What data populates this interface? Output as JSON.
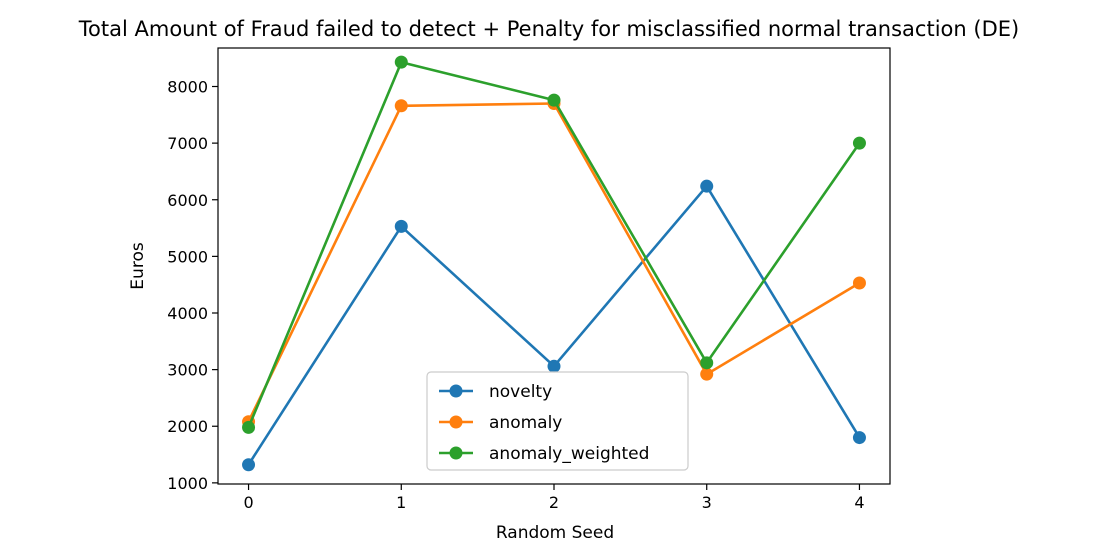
{
  "chart_data": {
    "type": "line",
    "title": "Total Amount of Fraud failed to detect + Penalty for misclassified normal transaction (DE)",
    "xlabel": "Random Seed",
    "ylabel": "Euros",
    "x": [
      0,
      1,
      2,
      3,
      4
    ],
    "xlim": [
      -0.2,
      4.2
    ],
    "ylim": [
      980,
      8680
    ],
    "xticks": [
      "0",
      "1",
      "2",
      "3",
      "4"
    ],
    "yticks": [
      1000,
      2000,
      3000,
      4000,
      5000,
      6000,
      7000,
      8000
    ],
    "grid": false,
    "legend_position": "lower center",
    "series": [
      {
        "name": "novelty",
        "color": "#1f77b4",
        "values": [
          1320,
          5530,
          3060,
          6240,
          1800
        ]
      },
      {
        "name": "anomaly",
        "color": "#ff7f0e",
        "values": [
          2080,
          7660,
          7700,
          2920,
          4530
        ]
      },
      {
        "name": "anomaly_weighted",
        "color": "#2ca02c",
        "values": [
          1980,
          8430,
          7760,
          3120,
          7000
        ]
      }
    ]
  }
}
